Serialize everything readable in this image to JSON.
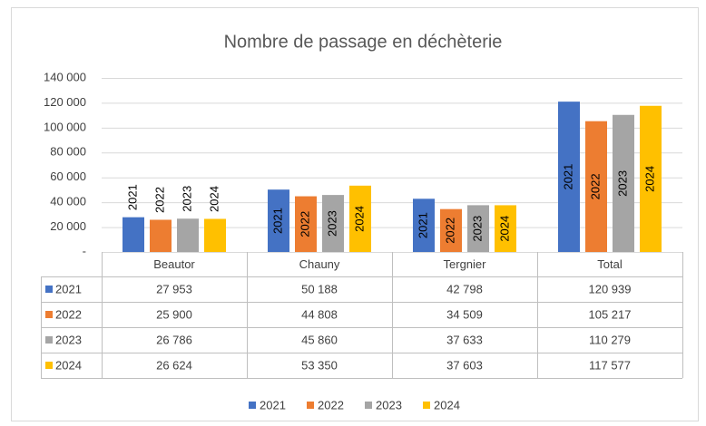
{
  "chart_data": {
    "type": "bar",
    "title": "Nombre de passage en déchèterie",
    "categories": [
      "Beautor",
      "Chauny",
      "Tergnier",
      "Total"
    ],
    "series": [
      {
        "name": "2021",
        "color": "#4472c4",
        "values": [
          27953,
          50188,
          42798,
          120939
        ],
        "value_labels": [
          "27 953",
          "50 188",
          "42 798",
          "120 939"
        ]
      },
      {
        "name": "2022",
        "color": "#ed7d31",
        "values": [
          25900,
          44808,
          34509,
          105217
        ],
        "value_labels": [
          "25 900",
          "44 808",
          "34 509",
          "105 217"
        ]
      },
      {
        "name": "2023",
        "color": "#a5a5a5",
        "values": [
          26786,
          45860,
          37633,
          110279
        ],
        "value_labels": [
          "26 786",
          "45 860",
          "37 633",
          "110 279"
        ]
      },
      {
        "name": "2024",
        "color": "#ffc000",
        "values": [
          26624,
          53350,
          37603,
          117577
        ],
        "value_labels": [
          "26 624",
          "53 350",
          "37 603",
          "117 577"
        ]
      }
    ],
    "ylim": [
      0,
      140000
    ],
    "yticks": [
      {
        "value": 0,
        "label": "-"
      },
      {
        "value": 20000,
        "label": "20 000"
      },
      {
        "value": 40000,
        "label": "40 000"
      },
      {
        "value": 60000,
        "label": "60 000"
      },
      {
        "value": 80000,
        "label": "80 000"
      },
      {
        "value": 100000,
        "label": "100 000"
      },
      {
        "value": 120000,
        "label": "120 000"
      },
      {
        "value": 140000,
        "label": "140 000"
      }
    ],
    "grid": true
  }
}
